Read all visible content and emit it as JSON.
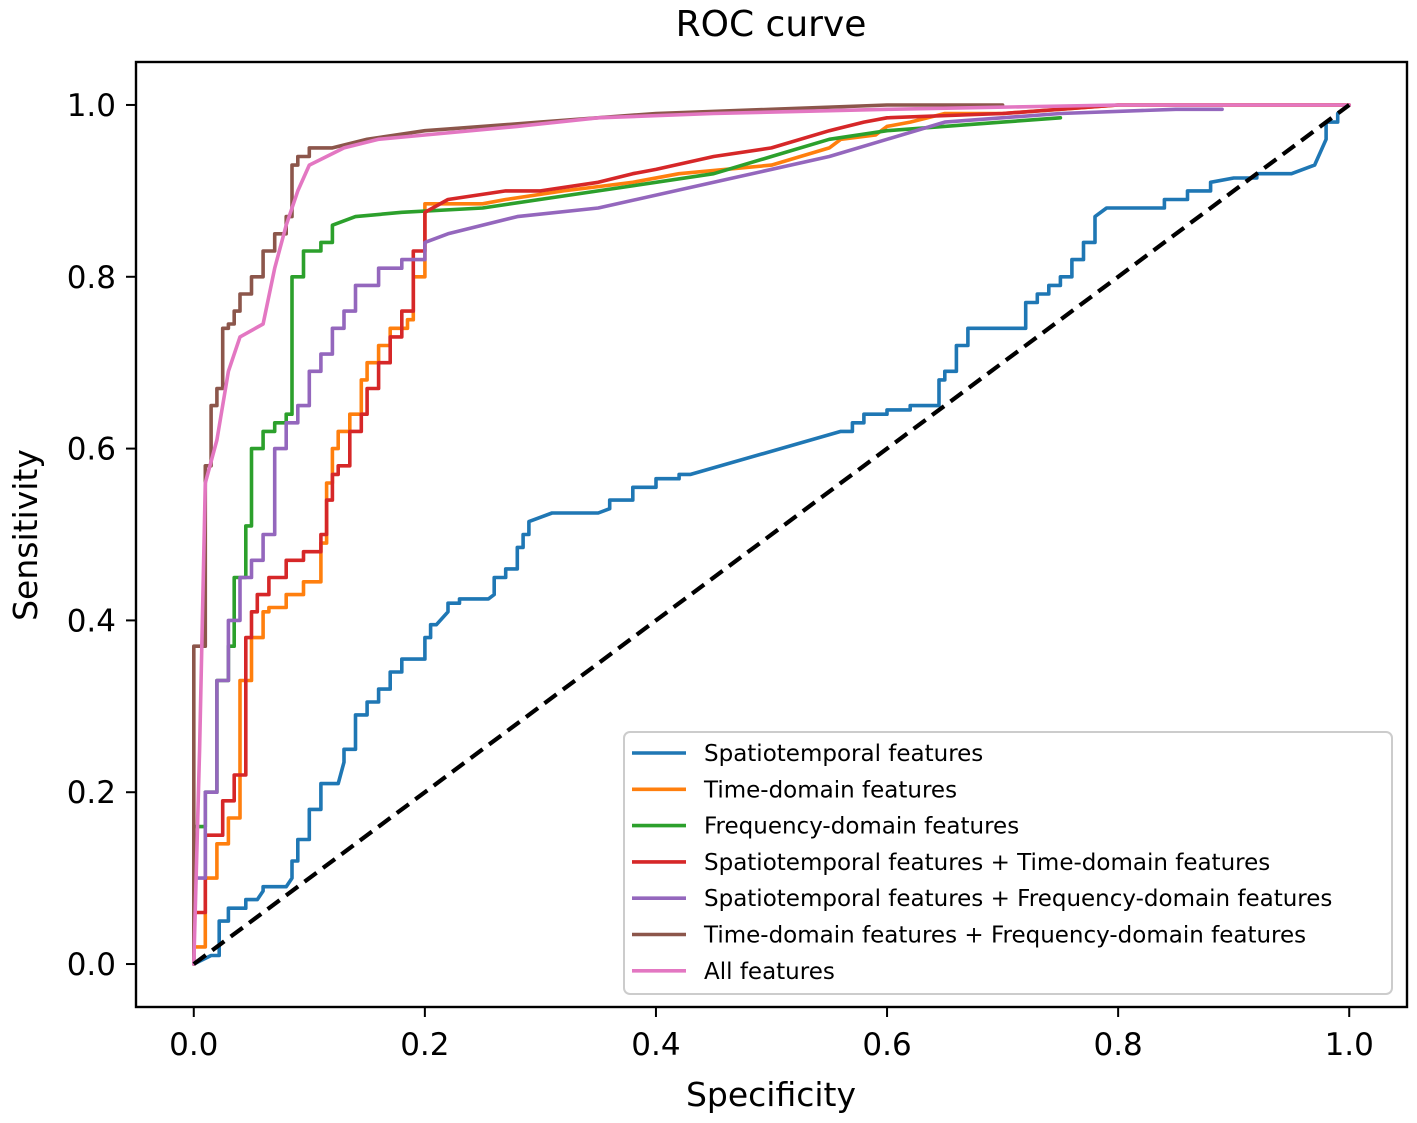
{
  "chart_data": {
    "type": "line",
    "title": "ROC curve",
    "xlabel": "Specificity",
    "ylabel": "Sensitivity",
    "xlim": [
      -0.05,
      1.05
    ],
    "ylim": [
      -0.05,
      1.05
    ],
    "xticks": [
      "0.0",
      "0.2",
      "0.4",
      "0.6",
      "0.8",
      "1.0"
    ],
    "yticks": [
      "0.0",
      "0.2",
      "0.4",
      "0.6",
      "0.8",
      "1.0"
    ],
    "grid": false,
    "legend_position": "lower-right",
    "reference_line": {
      "x": [
        0,
        1
      ],
      "y": [
        0,
        1
      ],
      "color": "#000000",
      "style": "dashed"
    },
    "series": [
      {
        "name": "Spatiotemporal features",
        "color": "#1f77b4",
        "x": [
          0,
          0.015,
          0.022,
          0.022,
          0.03,
          0.03,
          0.045,
          0.045,
          0.055,
          0.06,
          0.06,
          0.08,
          0.085,
          0.085,
          0.09,
          0.09,
          0.1,
          0.1,
          0.11,
          0.11,
          0.125,
          0.13,
          0.13,
          0.14,
          0.14,
          0.15,
          0.15,
          0.16,
          0.16,
          0.17,
          0.17,
          0.18,
          0.18,
          0.2,
          0.2,
          0.205,
          0.205,
          0.21,
          0.22,
          0.22,
          0.23,
          0.23,
          0.255,
          0.26,
          0.26,
          0.27,
          0.27,
          0.28,
          0.28,
          0.285,
          0.285,
          0.29,
          0.29,
          0.3,
          0.31,
          0.35,
          0.36,
          0.36,
          0.38,
          0.38,
          0.4,
          0.4,
          0.42,
          0.42,
          0.43,
          0.56,
          0.57,
          0.57,
          0.58,
          0.58,
          0.6,
          0.6,
          0.62,
          0.62,
          0.645,
          0.645,
          0.65,
          0.65,
          0.66,
          0.66,
          0.67,
          0.67,
          0.72,
          0.72,
          0.73,
          0.73,
          0.74,
          0.74,
          0.75,
          0.75,
          0.76,
          0.76,
          0.77,
          0.77,
          0.78,
          0.78,
          0.79,
          0.84,
          0.84,
          0.86,
          0.86,
          0.88,
          0.88,
          0.9,
          0.92,
          0.92,
          0.95,
          0.97,
          0.97,
          0.98,
          0.98,
          0.99,
          0.99,
          1.0
        ],
        "y": [
          0,
          0.01,
          0.01,
          0.05,
          0.05,
          0.065,
          0.065,
          0.075,
          0.075,
          0.085,
          0.09,
          0.09,
          0.1,
          0.12,
          0.12,
          0.145,
          0.145,
          0.18,
          0.18,
          0.21,
          0.21,
          0.235,
          0.25,
          0.25,
          0.29,
          0.29,
          0.305,
          0.305,
          0.32,
          0.32,
          0.34,
          0.34,
          0.355,
          0.355,
          0.38,
          0.38,
          0.395,
          0.395,
          0.41,
          0.42,
          0.42,
          0.425,
          0.425,
          0.43,
          0.45,
          0.45,
          0.46,
          0.46,
          0.485,
          0.485,
          0.5,
          0.5,
          0.515,
          0.52,
          0.525,
          0.525,
          0.53,
          0.54,
          0.54,
          0.555,
          0.555,
          0.565,
          0.565,
          0.57,
          0.57,
          0.62,
          0.62,
          0.63,
          0.63,
          0.64,
          0.64,
          0.645,
          0.645,
          0.65,
          0.65,
          0.68,
          0.68,
          0.69,
          0.69,
          0.72,
          0.72,
          0.74,
          0.74,
          0.77,
          0.77,
          0.78,
          0.78,
          0.79,
          0.79,
          0.8,
          0.8,
          0.82,
          0.82,
          0.84,
          0.84,
          0.87,
          0.88,
          0.88,
          0.89,
          0.89,
          0.9,
          0.9,
          0.91,
          0.915,
          0.915,
          0.92,
          0.92,
          0.93,
          0.93,
          0.96,
          0.98,
          0.98,
          0.99,
          1.0
        ]
      },
      {
        "name": "Time-domain features",
        "color": "#ff7f0e",
        "x": [
          0,
          0,
          0.01,
          0.01,
          0.02,
          0.02,
          0.03,
          0.03,
          0.04,
          0.04,
          0.05,
          0.05,
          0.06,
          0.06,
          0.065,
          0.065,
          0.08,
          0.08,
          0.095,
          0.095,
          0.11,
          0.11,
          0.115,
          0.115,
          0.12,
          0.12,
          0.125,
          0.125,
          0.135,
          0.135,
          0.145,
          0.145,
          0.15,
          0.15,
          0.16,
          0.16,
          0.17,
          0.17,
          0.185,
          0.185,
          0.19,
          0.19,
          0.2,
          0.2,
          0.25,
          0.27,
          0.32,
          0.35,
          0.38,
          0.42,
          0.5,
          0.55,
          0.56,
          0.59,
          0.6,
          0.62,
          0.65,
          0.7,
          0.8,
          0.9,
          1.0
        ],
        "y": [
          0,
          0.02,
          0.02,
          0.1,
          0.1,
          0.14,
          0.14,
          0.17,
          0.17,
          0.33,
          0.33,
          0.38,
          0.38,
          0.41,
          0.41,
          0.415,
          0.415,
          0.43,
          0.43,
          0.445,
          0.445,
          0.49,
          0.49,
          0.56,
          0.56,
          0.6,
          0.6,
          0.62,
          0.62,
          0.64,
          0.64,
          0.68,
          0.68,
          0.7,
          0.7,
          0.72,
          0.72,
          0.74,
          0.74,
          0.75,
          0.75,
          0.8,
          0.8,
          0.885,
          0.885,
          0.89,
          0.9,
          0.905,
          0.91,
          0.92,
          0.93,
          0.95,
          0.96,
          0.965,
          0.975,
          0.98,
          0.99,
          0.99,
          1.0,
          1.0,
          1.0
        ]
      },
      {
        "name": "Frequency-domain features",
        "color": "#2ca02c",
        "x": [
          0,
          0,
          0.01,
          0.01,
          0.02,
          0.02,
          0.03,
          0.03,
          0.035,
          0.035,
          0.045,
          0.045,
          0.05,
          0.05,
          0.06,
          0.06,
          0.07,
          0.07,
          0.08,
          0.08,
          0.085,
          0.085,
          0.095,
          0.095,
          0.11,
          0.11,
          0.12,
          0.12,
          0.14,
          0.18,
          0.25,
          0.35,
          0.45,
          0.5,
          0.55,
          0.6,
          0.7,
          0.75
        ],
        "y": [
          0,
          0.16,
          0.16,
          0.2,
          0.2,
          0.33,
          0.33,
          0.37,
          0.37,
          0.45,
          0.45,
          0.51,
          0.51,
          0.6,
          0.6,
          0.62,
          0.62,
          0.63,
          0.63,
          0.64,
          0.64,
          0.8,
          0.8,
          0.83,
          0.83,
          0.84,
          0.84,
          0.86,
          0.87,
          0.875,
          0.88,
          0.9,
          0.92,
          0.94,
          0.96,
          0.97,
          0.98,
          0.985
        ]
      },
      {
        "name": "Spatiotemporal features + Time-domain features",
        "color": "#d62728",
        "x": [
          0,
          0,
          0.01,
          0.01,
          0.025,
          0.025,
          0.035,
          0.035,
          0.045,
          0.045,
          0.05,
          0.05,
          0.055,
          0.055,
          0.065,
          0.065,
          0.08,
          0.08,
          0.095,
          0.095,
          0.11,
          0.11,
          0.115,
          0.115,
          0.12,
          0.12,
          0.125,
          0.125,
          0.135,
          0.135,
          0.145,
          0.145,
          0.15,
          0.15,
          0.16,
          0.16,
          0.17,
          0.17,
          0.18,
          0.18,
          0.19,
          0.19,
          0.2,
          0.2,
          0.22,
          0.27,
          0.3,
          0.35,
          0.38,
          0.4,
          0.45,
          0.5,
          0.55,
          0.58,
          0.6,
          0.7,
          0.8,
          0.9,
          1.0
        ],
        "y": [
          0,
          0.06,
          0.06,
          0.15,
          0.15,
          0.19,
          0.19,
          0.22,
          0.22,
          0.38,
          0.38,
          0.41,
          0.41,
          0.43,
          0.43,
          0.45,
          0.45,
          0.47,
          0.47,
          0.48,
          0.48,
          0.5,
          0.5,
          0.54,
          0.54,
          0.57,
          0.57,
          0.58,
          0.58,
          0.62,
          0.62,
          0.64,
          0.64,
          0.67,
          0.67,
          0.7,
          0.7,
          0.73,
          0.73,
          0.76,
          0.76,
          0.83,
          0.83,
          0.875,
          0.89,
          0.9,
          0.9,
          0.91,
          0.92,
          0.925,
          0.94,
          0.95,
          0.97,
          0.98,
          0.985,
          0.99,
          1.0,
          1.0,
          1.0
        ]
      },
      {
        "name": "Spatiotemporal features + Frequency-domain features",
        "color": "#9467bd",
        "x": [
          0,
          0,
          0.01,
          0.01,
          0.02,
          0.02,
          0.03,
          0.03,
          0.04,
          0.04,
          0.05,
          0.05,
          0.06,
          0.06,
          0.07,
          0.07,
          0.08,
          0.08,
          0.09,
          0.09,
          0.1,
          0.1,
          0.11,
          0.11,
          0.12,
          0.12,
          0.13,
          0.13,
          0.14,
          0.14,
          0.16,
          0.16,
          0.18,
          0.18,
          0.2,
          0.2,
          0.22,
          0.28,
          0.35,
          0.45,
          0.55,
          0.6,
          0.65,
          0.75,
          0.85,
          0.89
        ],
        "y": [
          0,
          0.1,
          0.1,
          0.2,
          0.2,
          0.33,
          0.33,
          0.4,
          0.4,
          0.45,
          0.45,
          0.47,
          0.47,
          0.5,
          0.5,
          0.6,
          0.6,
          0.63,
          0.63,
          0.65,
          0.65,
          0.69,
          0.69,
          0.71,
          0.71,
          0.74,
          0.74,
          0.76,
          0.76,
          0.79,
          0.79,
          0.81,
          0.81,
          0.82,
          0.82,
          0.84,
          0.85,
          0.87,
          0.88,
          0.91,
          0.94,
          0.96,
          0.98,
          0.99,
          0.995,
          0.995
        ]
      },
      {
        "name": "Time-domain features + Frequency-domain features",
        "color": "#8c564b",
        "x": [
          0,
          0,
          0.01,
          0.01,
          0.015,
          0.015,
          0.02,
          0.02,
          0.025,
          0.025,
          0.03,
          0.03,
          0.035,
          0.035,
          0.04,
          0.04,
          0.05,
          0.05,
          0.06,
          0.06,
          0.07,
          0.07,
          0.08,
          0.08,
          0.085,
          0.085,
          0.09,
          0.09,
          0.1,
          0.1,
          0.12,
          0.15,
          0.2,
          0.3,
          0.4,
          0.5,
          0.6,
          0.65,
          0.7
        ],
        "y": [
          0,
          0.37,
          0.37,
          0.58,
          0.58,
          0.65,
          0.65,
          0.67,
          0.67,
          0.74,
          0.74,
          0.745,
          0.745,
          0.76,
          0.76,
          0.78,
          0.78,
          0.8,
          0.8,
          0.83,
          0.83,
          0.85,
          0.85,
          0.87,
          0.87,
          0.93,
          0.93,
          0.94,
          0.94,
          0.95,
          0.95,
          0.96,
          0.97,
          0.98,
          0.99,
          0.995,
          1.0,
          1.0,
          1.0
        ]
      },
      {
        "name": "All features",
        "color": "#e377c2",
        "x": [
          0,
          0.005,
          0.005,
          0.01,
          0.01,
          0.02,
          0.02,
          0.03,
          0.03,
          0.04,
          0.04,
          0.06,
          0.06,
          0.07,
          0.07,
          0.08,
          0.08,
          0.09,
          0.09,
          0.1,
          0.1,
          0.13,
          0.16,
          0.2,
          0.28,
          0.35,
          0.45,
          0.6,
          0.8,
          1.0
        ],
        "y": [
          0,
          0.25,
          0.25,
          0.56,
          0.56,
          0.61,
          0.61,
          0.69,
          0.69,
          0.73,
          0.73,
          0.745,
          0.745,
          0.81,
          0.81,
          0.86,
          0.86,
          0.9,
          0.9,
          0.93,
          0.93,
          0.95,
          0.96,
          0.965,
          0.975,
          0.985,
          0.99,
          0.995,
          1.0,
          1.0
        ]
      }
    ]
  }
}
